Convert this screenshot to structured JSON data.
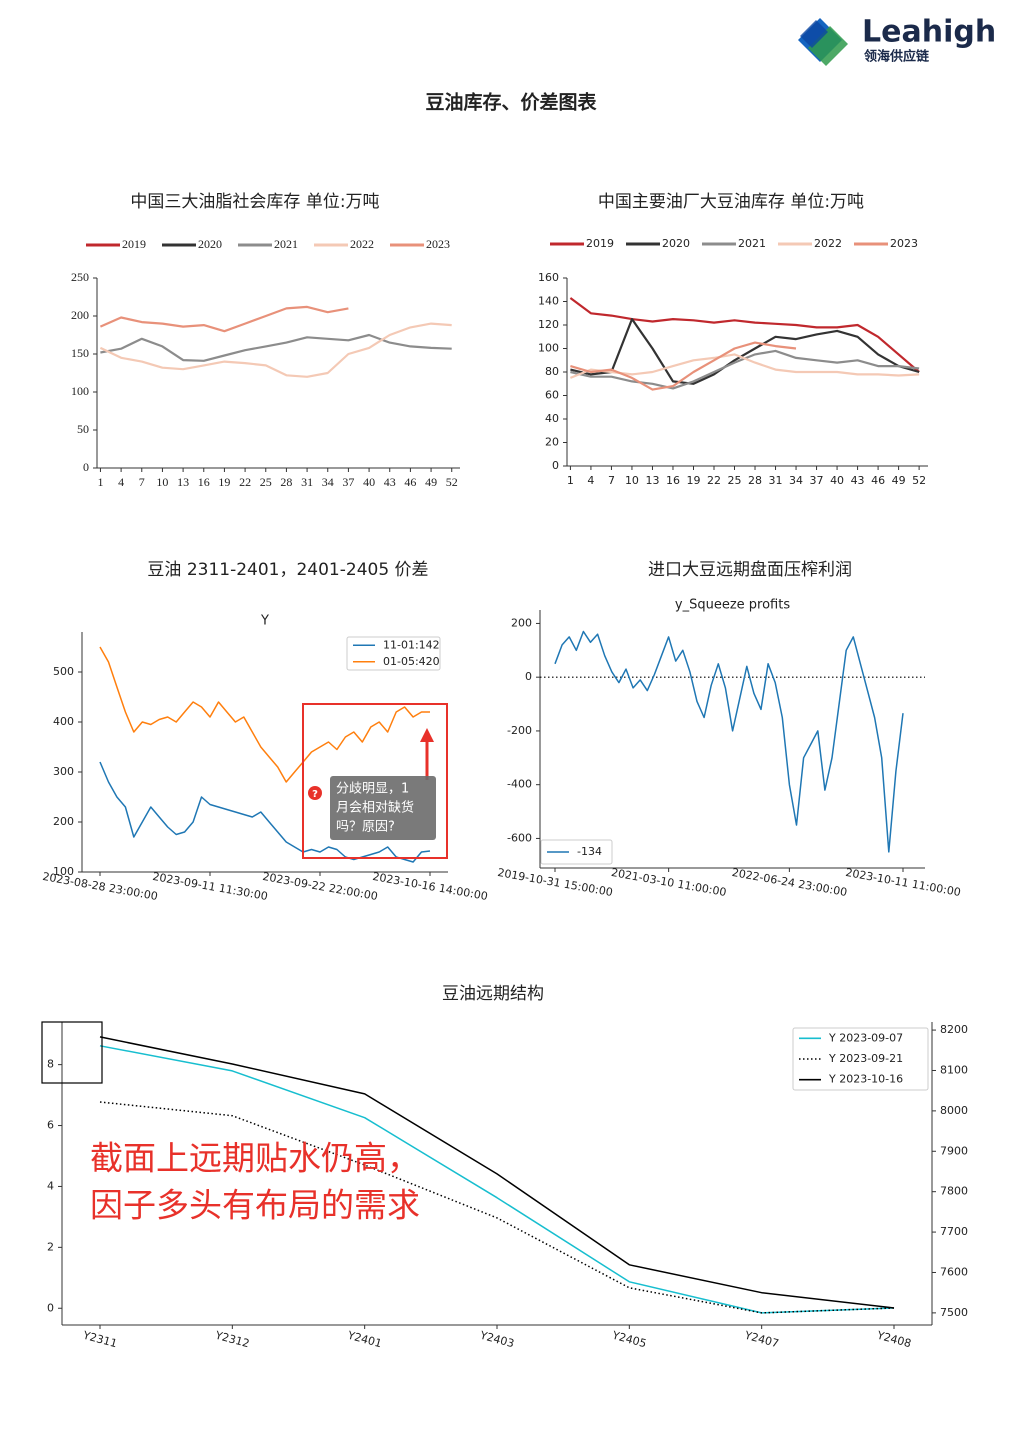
{
  "header": {
    "logo_name": "Leahigh",
    "logo_sub": "领海供应链",
    "title": "豆油库存、价差图表"
  },
  "chart_data": [
    {
      "type": "line",
      "title": "中国三大油脂社会库存  单位:万吨",
      "x": [
        1,
        4,
        7,
        10,
        13,
        16,
        19,
        22,
        25,
        28,
        31,
        34,
        37,
        40,
        43,
        46,
        49,
        52
      ],
      "xlim": [
        0.5,
        53.2
      ],
      "xticks": [
        1,
        4,
        7,
        10,
        13,
        16,
        19,
        22,
        25,
        28,
        31,
        34,
        37,
        40,
        43,
        46,
        49,
        52
      ],
      "ylim": [
        0,
        250
      ],
      "yticks": [
        0,
        50,
        100,
        150,
        200,
        250
      ],
      "legend": "top",
      "series": [
        {
          "name": "2019",
          "color": "#c0282d",
          "values": [
            null,
            null,
            null,
            null,
            null,
            null,
            null,
            null,
            null,
            null,
            null,
            null,
            null,
            null,
            null,
            null,
            null,
            null
          ]
        },
        {
          "name": "2020",
          "color": "#333333",
          "values": [
            null,
            null,
            null,
            null,
            null,
            null,
            null,
            null,
            null,
            null,
            null,
            null,
            null,
            null,
            null,
            null,
            null,
            null
          ]
        },
        {
          "name": "2021",
          "color": "#8c8c8c",
          "values": [
            152,
            157,
            170,
            160,
            142,
            141,
            148,
            155,
            160,
            165,
            172,
            170,
            168,
            175,
            165,
            160,
            158,
            157
          ]
        },
        {
          "name": "2022",
          "color": "#f4c9b5",
          "values": [
            158,
            145,
            140,
            132,
            130,
            135,
            140,
            138,
            135,
            122,
            120,
            125,
            150,
            158,
            175,
            185,
            190,
            188
          ]
        },
        {
          "name": "2023",
          "color": "#e8917a",
          "values": [
            186,
            198,
            192,
            190,
            186,
            188,
            180,
            190,
            200,
            210,
            212,
            205,
            210,
            null,
            null,
            null,
            null,
            null
          ]
        }
      ]
    },
    {
      "type": "line",
      "title": "中国主要油厂大豆油库存  单位:万吨",
      "x": [
        1,
        4,
        7,
        10,
        13,
        16,
        19,
        22,
        25,
        28,
        31,
        34,
        37,
        40,
        43,
        46,
        49,
        52
      ],
      "xlim": [
        0.5,
        53.3
      ],
      "xticks": [
        1,
        4,
        7,
        10,
        13,
        16,
        19,
        22,
        25,
        28,
        31,
        34,
        37,
        40,
        43,
        46,
        49,
        52
      ],
      "ylim": [
        0,
        160
      ],
      "yticks": [
        0,
        20,
        40,
        60,
        80,
        100,
        120,
        140,
        160
      ],
      "legend": "top",
      "series": [
        {
          "name": "2019",
          "color": "#c0282d",
          "values": [
            143,
            130,
            128,
            125,
            123,
            125,
            124,
            122,
            124,
            122,
            121,
            120,
            118,
            118,
            120,
            110,
            95,
            80
          ]
        },
        {
          "name": "2020",
          "color": "#333333",
          "values": [
            82,
            78,
            80,
            125,
            100,
            72,
            70,
            78,
            90,
            100,
            110,
            108,
            112,
            115,
            110,
            95,
            85,
            80
          ]
        },
        {
          "name": "2021",
          "color": "#8c8c8c",
          "values": [
            80,
            76,
            76,
            72,
            70,
            66,
            72,
            80,
            88,
            95,
            98,
            92,
            90,
            88,
            90,
            85,
            85,
            83
          ]
        },
        {
          "name": "2022",
          "color": "#f4c9b5",
          "values": [
            75,
            82,
            80,
            78,
            80,
            85,
            90,
            92,
            95,
            88,
            82,
            80,
            80,
            80,
            78,
            78,
            77,
            78
          ]
        },
        {
          "name": "2023",
          "color": "#e8917a",
          "values": [
            85,
            80,
            82,
            75,
            65,
            68,
            80,
            90,
            100,
            105,
            102,
            100,
            null,
            null,
            null,
            null,
            null,
            null
          ]
        }
      ]
    },
    {
      "type": "line",
      "title": "豆油 2311-2401，2401-2405 价差",
      "subtitle": "Y",
      "categories": [
        "2023-08-28 23:00:00",
        null,
        null,
        null,
        null,
        null,
        null,
        null,
        null,
        null,
        null,
        null,
        null,
        "2023-09-11 11:30:00",
        null,
        null,
        null,
        null,
        null,
        null,
        null,
        null,
        null,
        null,
        null,
        null,
        "2023-09-22 22:00:00",
        null,
        null,
        null,
        null,
        null,
        null,
        null,
        null,
        null,
        null,
        null,
        null,
        "2023-10-16 14:00:00"
      ],
      "ylim": [
        100,
        580
      ],
      "yticks": [
        100,
        200,
        300,
        400,
        500
      ],
      "legend": "upper right",
      "annotation": [
        "分歧明显，1",
        "月会相对缺货",
        "吗？原因?"
      ],
      "badge": "?",
      "series": [
        {
          "name": "11-01:142",
          "color": "#1f77b4",
          "values": [
            320,
            280,
            250,
            230,
            170,
            200,
            230,
            210,
            190,
            175,
            180,
            200,
            250,
            235,
            230,
            225,
            220,
            215,
            210,
            220,
            200,
            180,
            160,
            150,
            140,
            145,
            140,
            150,
            145,
            130,
            125,
            130,
            135,
            140,
            150,
            130,
            125,
            120,
            140,
            142
          ]
        },
        {
          "name": "01-05:420",
          "color": "#ff7f0e",
          "values": [
            550,
            520,
            470,
            420,
            380,
            400,
            395,
            405,
            410,
            400,
            420,
            440,
            430,
            410,
            440,
            420,
            400,
            410,
            380,
            350,
            330,
            310,
            280,
            300,
            320,
            340,
            350,
            360,
            345,
            370,
            380,
            360,
            390,
            400,
            380,
            420,
            430,
            410,
            420,
            420
          ]
        }
      ]
    },
    {
      "type": "line",
      "title": "进口大豆远期盘面压榨利润",
      "subtitle": "y_Squeeze profits",
      "categories": [
        "2019-10-31 15:00:00",
        null,
        null,
        null,
        null,
        null,
        null,
        null,
        null,
        null,
        null,
        null,
        null,
        null,
        null,
        null,
        "2021-03-10 11:00:00",
        null,
        null,
        null,
        null,
        null,
        null,
        null,
        null,
        null,
        null,
        null,
        null,
        null,
        null,
        null,
        null,
        "2022-06-24 23:00:00",
        null,
        null,
        null,
        null,
        null,
        null,
        null,
        null,
        null,
        null,
        null,
        null,
        null,
        null,
        null,
        "2023-10-11 11:00:00"
      ],
      "ylim": [
        -710,
        250
      ],
      "yticks": [
        -600,
        -400,
        -200,
        0,
        200
      ],
      "hline": 0,
      "legend": "lower left",
      "series": [
        {
          "name": "-134",
          "color": "#1f77b4",
          "values": [
            50,
            120,
            150,
            100,
            170,
            130,
            160,
            80,
            20,
            -20,
            30,
            -40,
            -10,
            -50,
            10,
            80,
            150,
            60,
            100,
            20,
            -90,
            -150,
            -30,
            50,
            -40,
            -200,
            -80,
            40,
            -60,
            -120,
            50,
            -20,
            -150,
            -400,
            -550,
            -300,
            -250,
            -200,
            -420,
            -300,
            -100,
            100,
            150,
            50,
            -50,
            -150,
            -300,
            -650,
            -350,
            -134
          ]
        }
      ]
    },
    {
      "type": "line",
      "title": "豆油远期结构",
      "categories": [
        "Y2311",
        "Y2312",
        "Y2401",
        "Y2403",
        "Y2405",
        "Y2407",
        "Y2408"
      ],
      "ylim": [
        -0.55,
        9.4
      ],
      "yticks": [
        0,
        2,
        4,
        6,
        8
      ],
      "y2lim": [
        7470,
        8220
      ],
      "y2ticks": [
        7500,
        7600,
        7700,
        7800,
        7900,
        8000,
        8100,
        8200
      ],
      "legend": "upper right",
      "annotation": [
        "截面上远期贴水仍高，",
        "因子多头有布局的需求"
      ],
      "series": [
        {
          "name": "Y 2023-09-07",
          "color": "#17becf",
          "axis": "y2",
          "values": [
            8161,
            8099,
            7983,
            7785,
            7577,
            7500,
            7512
          ]
        },
        {
          "name": "Y 2023-09-21",
          "color": "#000000",
          "dash": "dotted",
          "axis": "y2",
          "values": [
            8022,
            7988,
            7866,
            7735,
            7562,
            7500,
            7512
          ]
        },
        {
          "name": "Y 2023-10-16",
          "color": "#000000",
          "axis": "y2",
          "values": [
            8183,
            8116,
            8042,
            7844,
            7619,
            7550,
            7512
          ]
        }
      ]
    }
  ]
}
